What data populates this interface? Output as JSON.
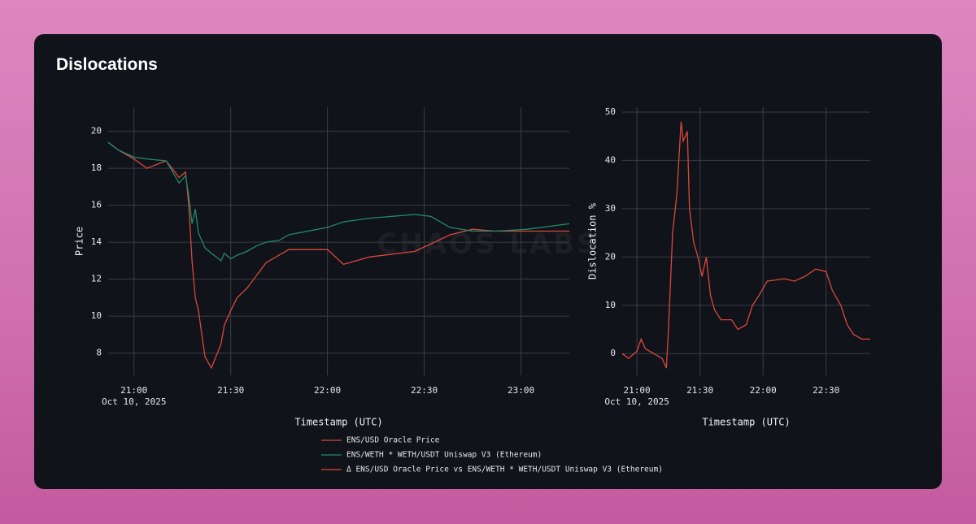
{
  "title": "Dislocations",
  "watermark": "CHAOS LABS",
  "chart_data": [
    {
      "type": "line",
      "x_label": "Timestamp (UTC)",
      "y_label": "Price",
      "xlim": [
        "20:52",
        "23:15"
      ],
      "xticks": [
        "21:00",
        "21:30",
        "22:00",
        "22:30",
        "23:00"
      ],
      "xdate": "Oct 10, 2025",
      "ylim": [
        6.8,
        21.3
      ],
      "yticks": [
        8,
        10,
        12,
        14,
        16,
        18,
        20
      ],
      "grid": true,
      "x": [
        "20:52",
        "20:55",
        "21:00",
        "21:04",
        "21:10",
        "21:14",
        "21:16",
        "21:17",
        "21:18",
        "21:19",
        "21:20",
        "21:22",
        "21:24",
        "21:27",
        "21:28",
        "21:30",
        "21:32",
        "21:35",
        "21:38",
        "21:41",
        "21:45",
        "21:48",
        "22:00",
        "22:05",
        "22:13",
        "22:27",
        "22:32",
        "22:38",
        "22:45",
        "22:52",
        "23:02",
        "23:15"
      ],
      "series": [
        {
          "name": "ENS/USD Oracle Price",
          "color": "#d9483b",
          "values": [
            19.4,
            19.0,
            18.5,
            18.0,
            18.4,
            17.5,
            17.8,
            16.0,
            13.0,
            11.0,
            10.3,
            7.8,
            7.2,
            8.5,
            9.5,
            10.3,
            11.0,
            11.5,
            12.2,
            12.9,
            13.3,
            13.6,
            13.6,
            12.8,
            13.2,
            13.5,
            13.9,
            14.4,
            14.7,
            14.6,
            14.6,
            14.6
          ]
        },
        {
          "name": "ENS/WETH * WETH/USDT Uniswap V3 (Ethereum)",
          "color": "#1f8a6a",
          "values": [
            19.4,
            19.0,
            18.6,
            18.5,
            18.4,
            17.2,
            17.6,
            16.5,
            15.0,
            15.8,
            14.5,
            13.7,
            13.4,
            13.0,
            13.4,
            13.1,
            13.3,
            13.5,
            13.8,
            14.0,
            14.1,
            14.4,
            14.8,
            15.1,
            15.3,
            15.5,
            15.4,
            14.8,
            14.6,
            14.6,
            14.7,
            15.0
          ]
        }
      ]
    },
    {
      "type": "line",
      "x_label": "Timestamp (UTC)",
      "y_label": "Dislocation %",
      "xlim": [
        "20:53",
        "22:51"
      ],
      "xticks": [
        "21:00",
        "21:30",
        "22:00",
        "22:30"
      ],
      "xdate": "Oct 10, 2025",
      "ylim": [
        -4.5,
        51
      ],
      "yticks": [
        0,
        10,
        20,
        30,
        40,
        50
      ],
      "grid": true,
      "x": [
        "20:53",
        "20:56",
        "21:00",
        "21:02",
        "21:04",
        "21:08",
        "21:12",
        "21:14",
        "21:15",
        "21:17",
        "21:19",
        "21:21",
        "21:22",
        "21:24",
        "21:25",
        "21:27",
        "21:29",
        "21:31",
        "21:33",
        "21:35",
        "21:37",
        "21:40",
        "21:45",
        "21:48",
        "21:52",
        "21:55",
        "21:58",
        "22:02",
        "22:10",
        "22:15",
        "22:20",
        "22:25",
        "22:30",
        "22:33",
        "22:37",
        "22:40",
        "22:43",
        "22:47",
        "22:51"
      ],
      "series": [
        {
          "name": "Δ ENS/USD Oracle Price vs ENS/WETH * WETH/USDT Uniswap V3 (Ethereum)",
          "color": "#d9483b",
          "values": [
            0,
            -1,
            0.5,
            3,
            1,
            0,
            -1,
            -3,
            5,
            25,
            33,
            48,
            44,
            46,
            30,
            23,
            20,
            16,
            20,
            12,
            9,
            7,
            7,
            5,
            6,
            10,
            12,
            15,
            15.5,
            15,
            16,
            17.5,
            17,
            13,
            10,
            6,
            4,
            3,
            3
          ]
        }
      ]
    }
  ]
}
